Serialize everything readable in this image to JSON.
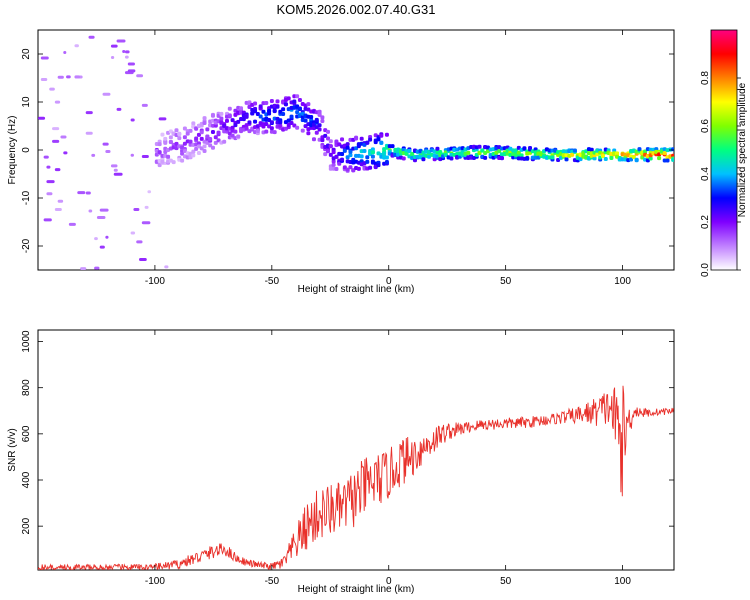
{
  "title": "KOM5.2026.002.07.40.G31",
  "chart_data": [
    {
      "type": "heatmap",
      "xlabel": "Height of straight line (km)",
      "ylabel": "Frequency (Hz)",
      "xlim": [
        -150,
        122
      ],
      "ylim": [
        -25,
        25
      ],
      "xticks": [
        -100,
        -50,
        0,
        50,
        100
      ],
      "yticks": [
        -20,
        -10,
        0,
        10,
        20
      ],
      "colorbar": {
        "label": "Normalized spectral amplitude",
        "range": [
          0,
          1
        ],
        "ticks": [
          0.0,
          0.2,
          0.4,
          0.6,
          0.8
        ],
        "tick_labels": [
          "0.0",
          "0.2",
          "0.4",
          "0.6",
          "0.8"
        ],
        "colors": [
          "#ffffff",
          "#c080ff",
          "#7f00ff",
          "#0000ff",
          "#00c0ff",
          "#00ff80",
          "#80ff00",
          "#ffff00",
          "#ff8000",
          "#ff0000",
          "#ff0080"
        ]
      },
      "ridge": {
        "x": [
          -100,
          -90,
          -80,
          -70,
          -60,
          -50,
          -40,
          -30,
          -25,
          -20,
          -10,
          0,
          10,
          30,
          50,
          70,
          100,
          122
        ],
        "frequency": [
          0,
          1,
          3,
          5,
          7,
          7,
          8,
          5,
          -1,
          -1,
          -0.5,
          0,
          -1,
          -0.5,
          -0.5,
          -1,
          -1,
          -1
        ],
        "amplitude": [
          0.15,
          0.15,
          0.18,
          0.2,
          0.3,
          0.35,
          0.38,
          0.3,
          0.2,
          0.35,
          0.45,
          0.55,
          0.55,
          0.6,
          0.62,
          0.65,
          0.8,
          0.95
        ]
      }
    },
    {
      "type": "line",
      "xlabel": "Height of straight line (km)",
      "ylabel": "SNR (v/v)",
      "xlim": [
        -150,
        122
      ],
      "ylim": [
        10,
        1050
      ],
      "xticks": [
        -100,
        -50,
        0,
        50,
        100
      ],
      "yticks": [
        200,
        400,
        600,
        800,
        1000
      ],
      "series": [
        {
          "name": "SNR",
          "color": "#e8302a",
          "x": [
            -150,
            -120,
            -100,
            -90,
            -80,
            -75,
            -70,
            -65,
            -60,
            -55,
            -50,
            -45,
            -40,
            -35,
            -30,
            -25,
            -20,
            -15,
            -10,
            -5,
            0,
            5,
            10,
            15,
            20,
            25,
            30,
            35,
            40,
            50,
            60,
            70,
            80,
            85,
            90,
            95,
            100,
            102,
            105,
            110,
            115,
            122
          ],
          "y": [
            20,
            20,
            22,
            35,
            70,
            90,
            100,
            60,
            40,
            30,
            25,
            40,
            120,
            200,
            250,
            270,
            280,
            320,
            370,
            400,
            420,
            480,
            500,
            540,
            580,
            610,
            620,
            630,
            640,
            645,
            650,
            665,
            680,
            690,
            700,
            720,
            560,
            640,
            700,
            690,
            695,
            700
          ],
          "spread": [
            15,
            15,
            15,
            20,
            30,
            30,
            30,
            20,
            15,
            15,
            15,
            30,
            70,
            110,
            120,
            120,
            110,
            130,
            130,
            120,
            110,
            110,
            90,
            70,
            60,
            40,
            30,
            25,
            25,
            25,
            25,
            25,
            35,
            50,
            70,
            90,
            260,
            100,
            30,
            20,
            15,
            15
          ]
        }
      ]
    }
  ]
}
